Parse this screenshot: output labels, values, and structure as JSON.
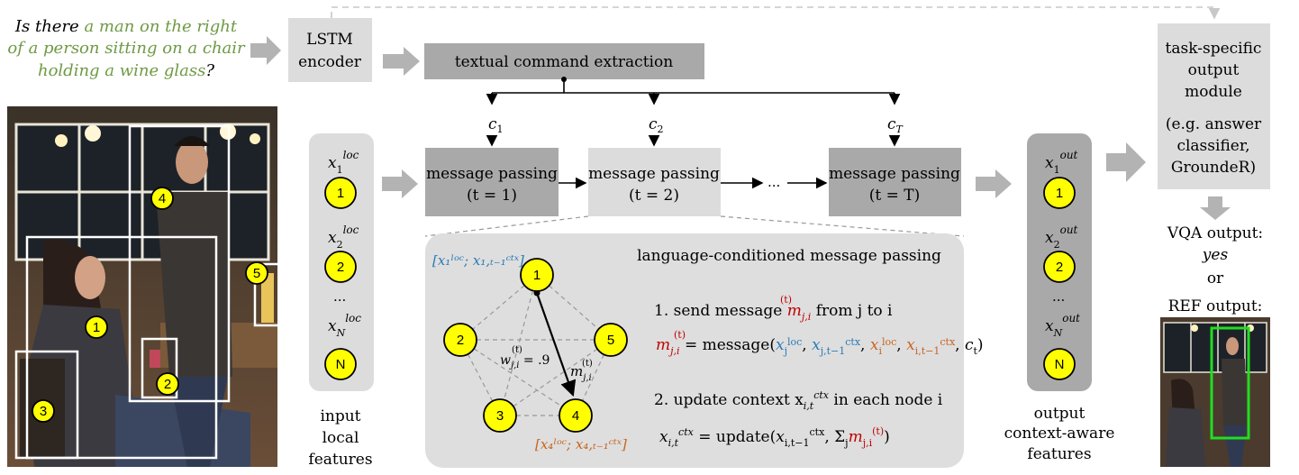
{
  "question": {
    "line1_pre": "Is there ",
    "line1_hl": "a man on the right",
    "line2_hl": "of a person sitting on a chair",
    "line3_hl": "holding a wine glass",
    "line3_post": "?"
  },
  "lstm": {
    "line1": "LSTM",
    "line2": "encoder"
  },
  "command": {
    "label": "textual command extraction",
    "c1": "c",
    "c1s": "1",
    "c2": "c",
    "c2s": "2",
    "cT": "c",
    "cTs": "T"
  },
  "mp": {
    "label": "message passing",
    "t1": "(t = 1)",
    "t2": "(t = 2)",
    "tT": "(t = T)",
    "dots": "..."
  },
  "input_col": {
    "x": "x",
    "sup": "loc",
    "s1": "1",
    "s2": "2",
    "sN": "N",
    "dots": "...",
    "n1": "1",
    "n2": "2",
    "nN": "N",
    "caption1": "input",
    "caption2": "local",
    "caption3": "features"
  },
  "output_col": {
    "x": "x",
    "sup": "out",
    "s1": "1",
    "s2": "2",
    "sN": "N",
    "dots": "...",
    "n1": "1",
    "n2": "2",
    "nN": "N",
    "caption1": "output",
    "caption2": "context-aware",
    "caption3": "features"
  },
  "task": {
    "l1": "task-specific",
    "l2": "output",
    "l3": "module",
    "l4": "(e.g. answer",
    "l5": "classifier,",
    "l6": "GroundeR)"
  },
  "vqa": {
    "label": "VQA output:",
    "value": "yes",
    "or": "or",
    "ref": "REF output:"
  },
  "panel": {
    "title": "language-conditioned message passing",
    "node_labels": [
      "1",
      "2",
      "3",
      "4",
      "5"
    ],
    "tag1": "[x₁ˡᵒᶜ; x₁,ₜ₋₁ᶜᵗˣ]",
    "tag4": "[x₄ˡᵒᶜ; x₄,ₜ₋₁ᶜᵗˣ]",
    "weight": "w",
    "weight_sub": "j,i",
    "weight_sup": "(t)",
    "weight_val": " = .9",
    "msg": "m",
    "msg_sub": "j,i",
    "msg_sup": "(t)",
    "step1_pre": "1. send message ",
    "step1_post": " from j to i",
    "eq1_rhs": " = message(",
    "step2": "2. update context x",
    "step2_post": " in each node i",
    "eq2_rhs": " = update(",
    "ctx_sub": "i,t",
    "ctx_sup": "ctx"
  },
  "photo_labels": [
    "1",
    "2",
    "3",
    "4",
    "5"
  ],
  "colors": {
    "green": "#6e9a44",
    "blue": "#2a7ab5",
    "orange": "#c8641e",
    "red": "#c00000",
    "arrow": "#b3b3b3",
    "ref_box": "#22dd22"
  }
}
